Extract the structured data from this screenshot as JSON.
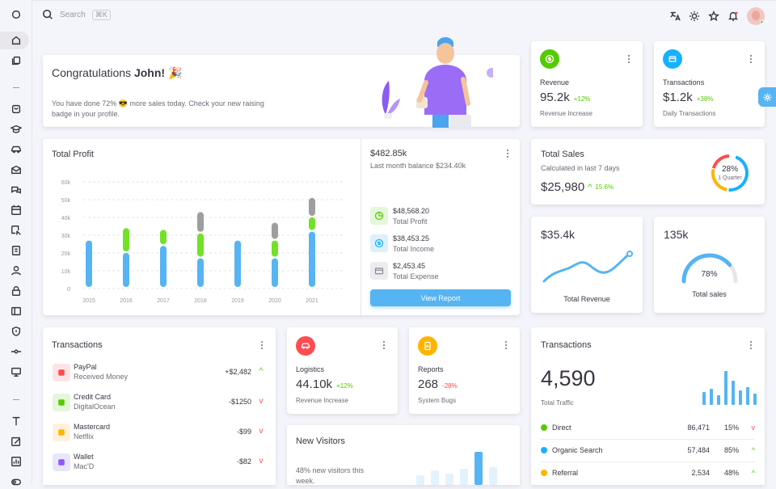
{
  "header": {
    "search_placeholder": "Search",
    "search_shortcut": "⌘K"
  },
  "congrats": {
    "title_prefix": "Congratulations ",
    "title_name": "John!",
    "title_emoji": "🎉",
    "text": "You have done 72% 😎 more sales today. Check your new raising badge in your profile."
  },
  "revenue_card": {
    "label": "Revenue",
    "value": "95.2k",
    "change": "+12%",
    "caption": "Revenue Increase",
    "color": "#56ca00"
  },
  "transactions_card": {
    "label": "Transactions",
    "value": "$1.2k",
    "change": "+38%",
    "caption": "Daily Transactions",
    "color": "#16b1ff"
  },
  "total_profit": {
    "title": "Total Profit",
    "balance": "$482.85k",
    "balance_caption": "Last month balance $234.40k",
    "items": [
      {
        "value": "$48,568.20",
        "label": "Total Profit"
      },
      {
        "value": "$38,453.25",
        "label": "Total Income"
      },
      {
        "value": "$2,453.45",
        "label": "Total Expense"
      }
    ],
    "button": "View Report"
  },
  "chart_data": {
    "type": "bar",
    "categories": [
      "2015",
      "2016",
      "2017",
      "2018",
      "2019",
      "2020",
      "2021"
    ],
    "y_ticks": [
      "60k",
      "50k",
      "40k",
      "30k",
      "20k",
      "10k",
      "0"
    ],
    "ylim": [
      0,
      60000
    ],
    "series": [
      {
        "values": [
          27000,
          20000,
          24000,
          17000,
          27000,
          17000,
          32000
        ],
        "color": "#56b4f2"
      },
      {
        "values": [
          0,
          14000,
          9000,
          14000,
          0,
          10000,
          8000
        ],
        "color": "#72e128"
      },
      {
        "values": [
          0,
          0,
          0,
          12000,
          0,
          10000,
          11000
        ],
        "color": "#9e9e9e"
      }
    ]
  },
  "total_sales": {
    "title": "Total Sales",
    "caption": "Calculated in last 7 days",
    "value": "$25,980",
    "change": "15.6%",
    "ring_value": "28%",
    "ring_label": "1 Quarter"
  },
  "total_revenue": {
    "value": "$35.4k",
    "label": "Total Revenue"
  },
  "total_sales_small": {
    "value": "135k",
    "gauge_value": "78%",
    "label": "Total sales",
    "percent": 78
  },
  "transactions_list": {
    "title": "Transactions",
    "rows": [
      {
        "name": "PayPal",
        "sub": "Received Money",
        "amount": "+$2,482",
        "trend": "up",
        "bg": "#fde4e4",
        "fg": "#ff4c51"
      },
      {
        "name": "Credit Card",
        "sub": "DigitalOcean",
        "amount": "-$1250",
        "trend": "down",
        "bg": "#e4f7da",
        "fg": "#56ca00"
      },
      {
        "name": "Mastercard",
        "sub": "Netflix",
        "amount": "-$99",
        "trend": "down",
        "bg": "#fff1dc",
        "fg": "#ffb400"
      },
      {
        "name": "Wallet",
        "sub": "Mac'D",
        "amount": "-$82",
        "trend": "down",
        "bg": "#e7e6fb",
        "fg": "#9155fd"
      }
    ]
  },
  "logistics_card": {
    "label": "Logistics",
    "value": "44.10k",
    "change": "+12%",
    "caption": "Revenue Increase",
    "color": "#ff4c51"
  },
  "reports_card": {
    "label": "Reports",
    "value": "268",
    "change": "-28%",
    "caption": "System Bugs",
    "color": "#ffb400"
  },
  "new_visitors": {
    "title": "New Visitors",
    "text": "48% new visitors this week."
  },
  "traffic": {
    "title": "Transactions",
    "value": "4,590",
    "caption": "Total Traffic",
    "rows": [
      {
        "name": "Direct",
        "count": "86,471",
        "pct": "15%",
        "trend": "down",
        "color": "#56ca00"
      },
      {
        "name": "Organic Search",
        "count": "57,484",
        "pct": "85%",
        "trend": "up",
        "color": "#16b1ff"
      },
      {
        "name": "Referral",
        "count": "2,534",
        "pct": "48%",
        "trend": "up",
        "color": "#ffb400"
      }
    ]
  }
}
